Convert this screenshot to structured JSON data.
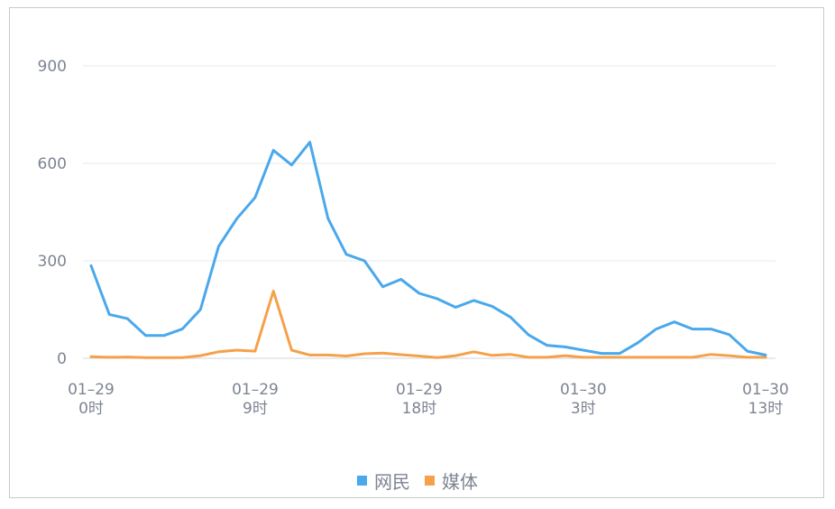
{
  "chart_data": {
    "type": "line",
    "x_tick_labels": [
      {
        "index": 0,
        "line1": "01–29",
        "line2": "0时"
      },
      {
        "index": 9,
        "line1": "01–29",
        "line2": "9时"
      },
      {
        "index": 18,
        "line1": "01–29",
        "line2": "18时"
      },
      {
        "index": 27,
        "line1": "01–30",
        "line2": "3时"
      },
      {
        "index": 37,
        "line1": "01–30",
        "line2": "13时"
      }
    ],
    "ylim": [
      0,
      900
    ],
    "yticks": [
      0,
      300,
      600,
      900
    ],
    "grid": true,
    "legend_position": "bottom",
    "series": [
      {
        "name": "网民",
        "color": "#4aa8ec",
        "values": [
          285,
          135,
          122,
          70,
          70,
          90,
          150,
          345,
          430,
          495,
          640,
          595,
          665,
          430,
          320,
          300,
          220,
          243,
          200,
          183,
          157,
          178,
          160,
          127,
          72,
          40,
          35,
          25,
          15,
          15,
          48,
          90,
          112,
          90,
          90,
          73,
          22,
          10
        ]
      },
      {
        "name": "媒体",
        "color": "#f5a14b",
        "values": [
          5,
          3,
          4,
          2,
          2,
          2,
          8,
          20,
          25,
          22,
          207,
          25,
          10,
          10,
          7,
          14,
          16,
          11,
          7,
          2,
          8,
          20,
          9,
          12,
          3,
          3,
          8,
          3,
          3,
          3,
          3,
          3,
          3,
          3,
          12,
          8,
          3,
          3
        ]
      }
    ]
  }
}
